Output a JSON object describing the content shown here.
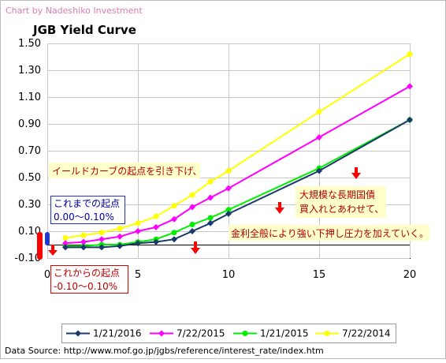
{
  "credit": "Chart by Nadeshiko Investment",
  "source": "Data Source: http://www.mof.go.jp/jgbs/reference/interest_rate/index.htm",
  "annotations": {
    "lower_start": "イールドカーブの起点を引き下げ、",
    "large_scale_line1": "大規模な長期国債",
    "large_scale_line2": "買入れとあわせて、",
    "pressure": "金利全般により強い下押し圧力を加えていく。",
    "before_title": "これまでの起点",
    "before_range": "0.00〜0.10%",
    "after_title": "これからの起点",
    "after_range": "-0.10〜0.10%"
  },
  "colors": {
    "annotation_bg": "#ffffcc",
    "arrow": "#ff0000",
    "before_band": "#2038d8",
    "after_band": "#ff0000"
  },
  "chart_data": {
    "type": "line",
    "title": "JGB Yield Curve",
    "xlim": [
      0,
      20
    ],
    "ylim": [
      -0.1,
      1.5
    ],
    "x_ticks": [
      0,
      5,
      10,
      15,
      20
    ],
    "y_ticks": [
      -0.1,
      0.1,
      0.3,
      0.5,
      0.7,
      0.9,
      1.1,
      1.3,
      1.5
    ],
    "y_tick_labels": [
      "-0.10",
      "0.10",
      "0.30",
      "0.50",
      "0.70",
      "0.90",
      "1.10",
      "1.30",
      "1.50"
    ],
    "grid": true,
    "legend_position": "bottom",
    "x": [
      1,
      2,
      3,
      4,
      5,
      6,
      7,
      8,
      9,
      10,
      15,
      20
    ],
    "series": [
      {
        "name": "1/21/2016",
        "color": "#1a3a6a",
        "marker": "diamond",
        "values": [
          -0.02,
          -0.02,
          -0.02,
          -0.01,
          0.01,
          0.02,
          0.04,
          0.1,
          0.16,
          0.23,
          0.55,
          0.93
        ]
      },
      {
        "name": "7/22/2015",
        "color": "#ff00ff",
        "marker": "diamond",
        "values": [
          0.01,
          0.02,
          0.04,
          0.06,
          0.1,
          0.13,
          0.19,
          0.28,
          0.35,
          0.42,
          0.8,
          1.18
        ]
      },
      {
        "name": "1/21/2015",
        "color": "#00ee00",
        "marker": "circle",
        "values": [
          -0.01,
          -0.01,
          0.0,
          0.0,
          0.02,
          0.04,
          0.09,
          0.15,
          0.2,
          0.26,
          0.57,
          0.93
        ]
      },
      {
        "name": "7/22/2014",
        "color": "#ffff00",
        "marker": "circle",
        "values": [
          0.05,
          0.07,
          0.09,
          0.12,
          0.16,
          0.21,
          0.29,
          0.37,
          0.47,
          0.55,
          0.99,
          1.42
        ]
      }
    ]
  }
}
